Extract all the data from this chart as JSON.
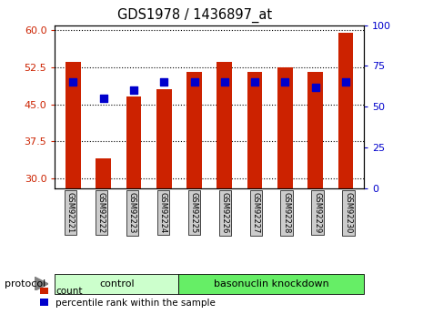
{
  "title": "GDS1978 / 1436897_at",
  "samples": [
    "GSM92221",
    "GSM92222",
    "GSM92223",
    "GSM92224",
    "GSM92225",
    "GSM92226",
    "GSM92227",
    "GSM92228",
    "GSM92229",
    "GSM92230"
  ],
  "counts": [
    53.5,
    34.0,
    46.5,
    48.0,
    51.5,
    53.5,
    51.5,
    52.5,
    51.5,
    59.5
  ],
  "percentile_ranks": [
    65,
    55,
    60,
    65,
    65,
    65,
    65,
    65,
    62,
    65
  ],
  "ylim_left": [
    28,
    61
  ],
  "ylim_right": [
    0,
    100
  ],
  "yticks_left": [
    30,
    37.5,
    45,
    52.5,
    60
  ],
  "yticks_right": [
    0,
    25,
    50,
    75,
    100
  ],
  "bar_color": "#cc2200",
  "dot_color": "#0000cc",
  "bar_bottom": 28,
  "control_count": 4,
  "knockdown_count": 6,
  "control_label": "control",
  "knockdown_label": "basonuclin knockdown",
  "protocol_label": "protocol",
  "legend_count": "count",
  "legend_percentile": "percentile rank within the sample",
  "control_color": "#ccffcc",
  "knockdown_color": "#66ee66",
  "tick_bg_color": "#cccccc",
  "bar_width": 0.5,
  "dot_size": 38
}
